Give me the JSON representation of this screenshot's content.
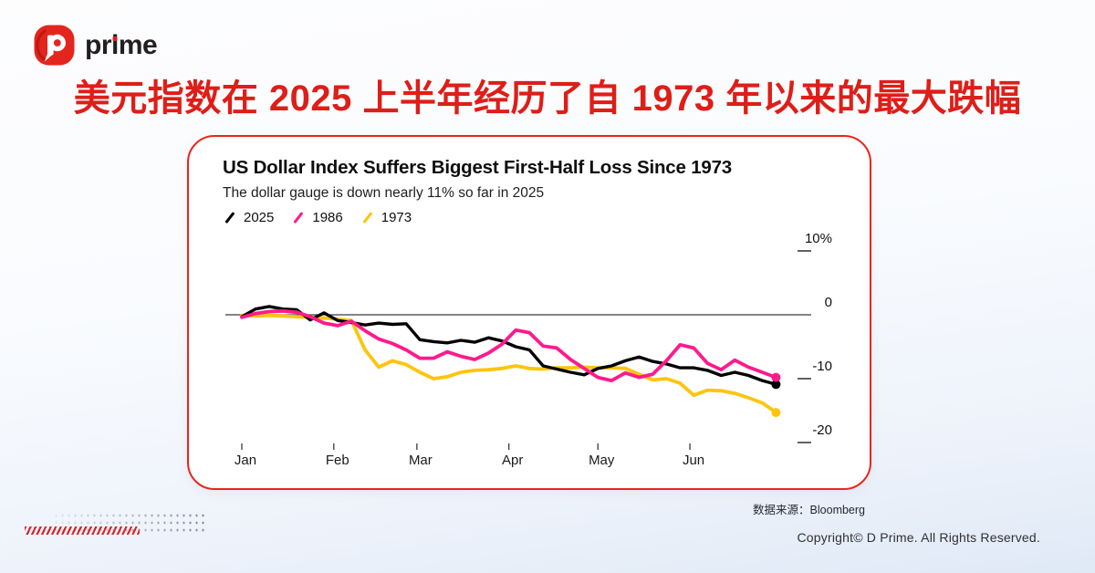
{
  "logo": {
    "parts": [
      "pr",
      "i",
      "me"
    ]
  },
  "headline": "美元指数在 2025 上半年经历了自 1973 年以来的最大跌幅",
  "colors": {
    "brand_red": "#E0221B",
    "card_border_red": "#E8251D",
    "series_2025": "#000000",
    "series_1986": "#FF1A8C",
    "series_1973": "#FFC40B"
  },
  "footer": {
    "source": "数据来源：Bloomberg",
    "copyright": "Copyright© D Prime. All Rights Reserved."
  },
  "chart_data": {
    "type": "line",
    "title": "US Dollar Index Suffers Biggest First-Half Loss Since 1973",
    "subtitle": "The dollar gauge is down nearly 11% so far in 2025",
    "unit": "%",
    "grid": false,
    "legend_position": "top-left",
    "x_axis": {
      "months": [
        "Jan",
        "Feb",
        "Mar",
        "Apr",
        "May",
        "Jun"
      ],
      "month_day_offsets": [
        0,
        31,
        59,
        90,
        120,
        151
      ],
      "total_days": 180
    },
    "y_axis": {
      "ticks": [
        {
          "label": "10%",
          "value": 10
        },
        {
          "label": "0",
          "value": 0
        },
        {
          "label": "-10",
          "value": -10
        },
        {
          "label": "-20",
          "value": -20
        }
      ],
      "range": [
        -22,
        12
      ]
    },
    "series": [
      {
        "name": "2025",
        "color": "#000000",
        "draw_order": 2,
        "values": [
          -0.3,
          0.9,
          1.3,
          0.9,
          0.8,
          -0.8,
          0.3,
          -0.9,
          -1.2,
          -1.6,
          -1.3,
          -1.5,
          -1.4,
          -3.9,
          -4.2,
          -4.4,
          -4.0,
          -4.3,
          -3.6,
          -4.1,
          -5.0,
          -5.5,
          -8.0,
          -8.5,
          -9.0,
          -9.4,
          -8.4,
          -8.0,
          -7.2,
          -6.6,
          -7.3,
          -7.7,
          -8.3,
          -8.3,
          -8.7,
          -9.5,
          -9.0,
          -9.5,
          -10.3,
          -10.9
        ]
      },
      {
        "name": "1986",
        "color": "#FF1A8C",
        "draw_order": 3,
        "values": [
          -0.4,
          0.2,
          0.5,
          0.6,
          0.4,
          -0.3,
          -1.3,
          -1.7,
          -1.0,
          -2.5,
          -3.8,
          -4.5,
          -5.5,
          -6.8,
          -6.8,
          -5.8,
          -6.5,
          -7.0,
          -6.0,
          -4.6,
          -2.4,
          -2.8,
          -4.9,
          -5.2,
          -7.0,
          -8.4,
          -9.8,
          -10.3,
          -9.1,
          -9.8,
          -9.3,
          -7.2,
          -4.7,
          -5.2,
          -7.6,
          -8.6,
          -7.1,
          -8.2,
          -9.0,
          -9.8
        ]
      },
      {
        "name": "1973",
        "color": "#FFC40B",
        "draw_order": 1,
        "values": [
          -0.1,
          -0.2,
          -0.1,
          -0.2,
          -0.3,
          -0.4,
          -0.5,
          -0.7,
          -0.9,
          -5.5,
          -8.2,
          -7.2,
          -7.8,
          -9.0,
          -10.0,
          -9.7,
          -9.0,
          -8.7,
          -8.6,
          -8.4,
          -8.0,
          -8.4,
          -8.5,
          -8.3,
          -8.3,
          -8.2,
          -8.3,
          -8.3,
          -8.4,
          -9.3,
          -10.2,
          -10.0,
          -10.7,
          -12.6,
          -11.8,
          -11.9,
          -12.3,
          -13.0,
          -13.8,
          -15.3
        ]
      }
    ]
  }
}
